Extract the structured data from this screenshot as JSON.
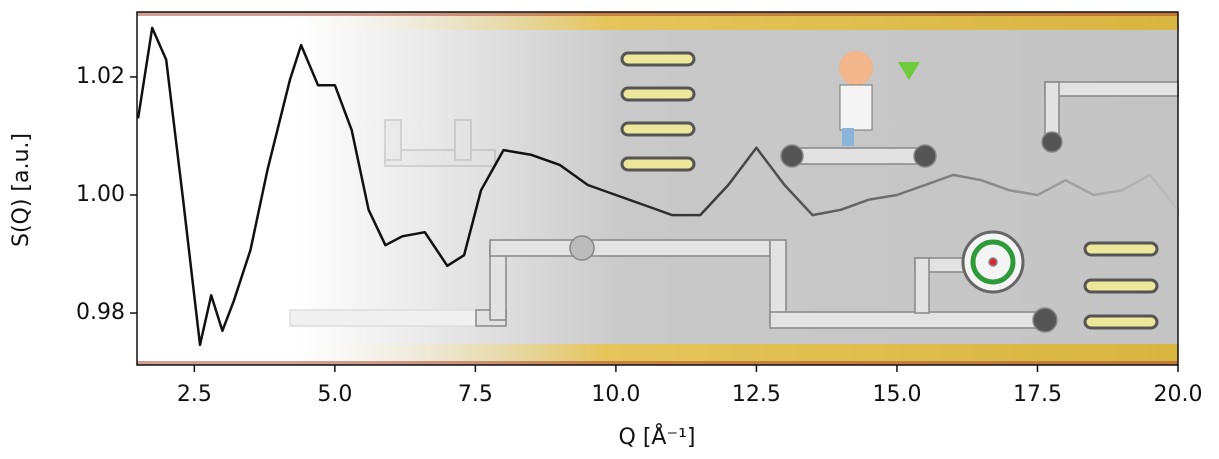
{
  "chart_data": {
    "type": "line",
    "xlabel": "Q [Å⁻¹]",
    "ylabel": "S(Q) [a.u.]",
    "x": [
      1.5,
      1.75,
      2.0,
      2.3,
      2.6,
      2.8,
      3.0,
      3.2,
      3.5,
      3.8,
      4.2,
      4.4,
      4.7,
      5.0,
      5.3,
      5.6,
      5.9,
      6.2,
      6.6,
      7.0,
      7.3,
      7.6,
      8.0,
      8.5,
      9.0,
      9.5,
      10.0,
      10.5,
      11.0,
      11.5,
      12.0,
      12.5,
      13.0,
      13.5,
      14.0,
      14.5,
      15.0,
      15.5,
      16.0,
      16.5,
      17.0,
      17.5,
      18.0,
      18.5,
      19.0,
      19.5,
      20.0
    ],
    "values": [
      1.013,
      1.0283,
      1.0229,
      0.9992,
      0.9746,
      0.983,
      0.977,
      0.982,
      0.9907,
      1.0042,
      1.0195,
      1.0254,
      1.0186,
      1.0186,
      1.011,
      0.9975,
      0.9915,
      0.993,
      0.9937,
      0.988,
      0.9898,
      1.0008,
      1.0076,
      1.0068,
      1.0051,
      1.0017,
      1.0,
      0.9983,
      0.9966,
      0.9966,
      1.0017,
      1.008,
      1.0017,
      0.9966,
      0.9975,
      0.9992,
      1.0,
      1.0017,
      1.0034,
      1.0025,
      1.0008,
      1.0,
      1.0025,
      1.0,
      1.0008,
      1.0034,
      0.9975
    ],
    "color": "#111111",
    "xlim": [
      1.48,
      20.0
    ],
    "ylim": [
      0.9712,
      1.031
    ],
    "xticks": [
      2.5,
      {
        "value": 5.0,
        "label": "5.0"
      },
      7.5,
      {
        "value": 10.0,
        "label": "10.0"
      },
      12.5,
      {
        "value": 15.0,
        "label": "15.0"
      },
      17.5,
      {
        "value": 20.0,
        "label": "20.0"
      }
    ],
    "yticks": [
      0.98,
      {
        "value": 1.0,
        "label": "1.00"
      },
      1.02
    ]
  }
}
